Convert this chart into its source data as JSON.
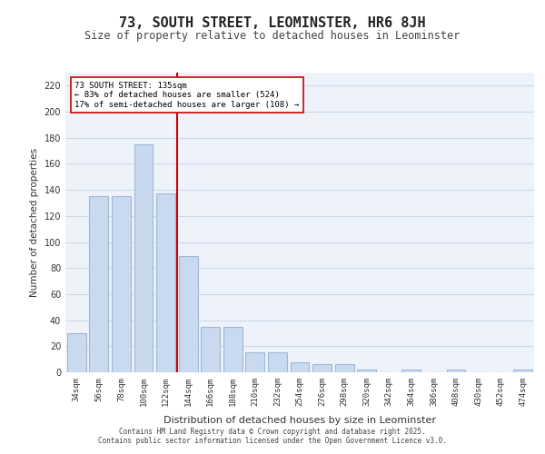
{
  "title": "73, SOUTH STREET, LEOMINSTER, HR6 8JH",
  "subtitle": "Size of property relative to detached houses in Leominster",
  "xlabel": "Distribution of detached houses by size in Leominster",
  "ylabel": "Number of detached properties",
  "bar_categories": [
    "34sqm",
    "56sqm",
    "78sqm",
    "100sqm",
    "122sqm",
    "144sqm",
    "166sqm",
    "188sqm",
    "210sqm",
    "232sqm",
    "254sqm",
    "276sqm",
    "298sqm",
    "320sqm",
    "342sqm",
    "364sqm",
    "386sqm",
    "408sqm",
    "430sqm",
    "452sqm",
    "474sqm"
  ],
  "bar_values": [
    30,
    135,
    135,
    175,
    137,
    89,
    35,
    35,
    15,
    15,
    8,
    6,
    6,
    2,
    0,
    2,
    0,
    2,
    0,
    0,
    2
  ],
  "bar_color": "#c9d9ef",
  "bar_edge_color": "#a0b8d8",
  "annotation_text_line1": "73 SOUTH STREET: 135sqm",
  "annotation_text_line2": "← 83% of detached houses are smaller (524)",
  "annotation_text_line3": "17% of semi-detached houses are larger (108) →",
  "annotation_box_color": "#ffffff",
  "annotation_box_edge": "#cc0000",
  "vline_color": "#cc0000",
  "vline_x": 4.5,
  "grid_color": "#d0d8e8",
  "background_color": "#eef2fa",
  "ylim": [
    0,
    230
  ],
  "yticks": [
    0,
    20,
    40,
    60,
    80,
    100,
    120,
    140,
    160,
    180,
    200,
    220
  ],
  "footer_line1": "Contains HM Land Registry data © Crown copyright and database right 2025.",
  "footer_line2": "Contains public sector information licensed under the Open Government Licence v3.0."
}
